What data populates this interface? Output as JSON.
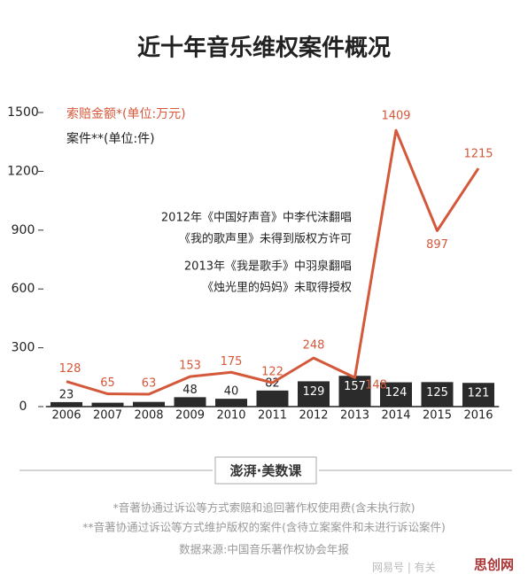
{
  "chart_data": {
    "type": "combo",
    "title": "近十年音乐维权案件概况",
    "categories": [
      "2006",
      "2007",
      "2008",
      "2009",
      "2010",
      "2011",
      "2012",
      "2013",
      "2014",
      "2015",
      "2016"
    ],
    "series": [
      {
        "name": "案件**(单位:件)",
        "type": "bar",
        "color": "#2b2b2b",
        "values": [
          23,
          20,
          24,
          48,
          40,
          82,
          129,
          157,
          124,
          125,
          121
        ],
        "value_labels": [
          "23",
          null,
          null,
          "48",
          "40",
          "82",
          "129",
          "157",
          "124",
          "125",
          "121"
        ]
      },
      {
        "name": "索赔金额*(单位:万元)",
        "type": "line",
        "color": "#d4583a",
        "values": [
          128,
          65,
          63,
          153,
          175,
          122,
          248,
          148,
          1409,
          897,
          1215
        ]
      }
    ],
    "ylim": [
      0,
      1500
    ],
    "yticks": [
      0,
      300,
      600,
      900,
      1200,
      1500
    ],
    "annotations": [
      "2012年《中国好声音》中李代沫翻唱",
      "《我的歌声里》未得到版权方许可",
      "2013年《我是歌手》中羽泉翻唱",
      "《烛光里的妈妈》未取得授权"
    ],
    "source_logo": "澎湃·美数课",
    "footnotes": [
      "*音著协通过诉讼等方式索赔和追回著作权使用费(含未执行款)",
      "**音著协通过诉讼等方式维护版权的案件(含待立案案件和未进行诉讼案件)",
      "数据来源:中国音乐著作权协会年报"
    ],
    "watermarks": [
      "网易号 | 有关",
      "思创网"
    ]
  }
}
